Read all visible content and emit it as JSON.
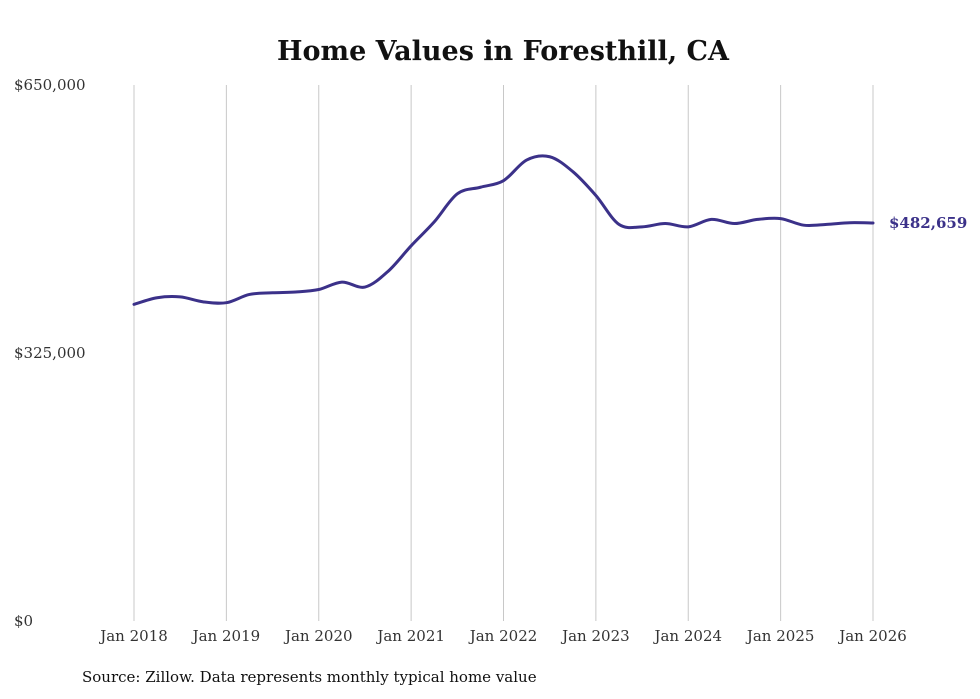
{
  "chart_data": {
    "type": "line",
    "title": "Home Values in Foresthill, CA",
    "xlabel": "",
    "ylabel": "",
    "ylim": [
      0,
      650000
    ],
    "yticks": [
      0,
      325000,
      650000
    ],
    "ytick_labels": [
      "$0",
      "$325,000",
      "$650,000"
    ],
    "xlim": [
      2018.0,
      2026.0
    ],
    "xticks": [
      2018,
      2019,
      2020,
      2021,
      2022,
      2023,
      2024,
      2025,
      2026
    ],
    "xtick_labels": [
      "Jan 2018",
      "Jan 2019",
      "Jan 2020",
      "Jan 2021",
      "Jan 2022",
      "Jan 2023",
      "Jan 2024",
      "Jan 2025",
      "Jan 2026"
    ],
    "grid": "vertical",
    "series": [
      {
        "name": "Typical home value",
        "color": "#3b3189",
        "x": [
          2018.0,
          2018.25,
          2018.5,
          2018.75,
          2019.0,
          2019.25,
          2019.5,
          2019.75,
          2020.0,
          2020.25,
          2020.5,
          2020.75,
          2021.0,
          2021.25,
          2021.5,
          2021.75,
          2022.0,
          2022.25,
          2022.5,
          2022.75,
          2023.0,
          2023.25,
          2023.5,
          2023.75,
          2024.0,
          2024.25,
          2024.5,
          2024.75,
          2025.0,
          2025.25,
          2025.5,
          2025.75,
          2026.0
        ],
        "values": [
          384000,
          392000,
          393000,
          387000,
          386000,
          396000,
          398000,
          399000,
          402000,
          411000,
          405000,
          424000,
          455000,
          484000,
          518000,
          526000,
          534000,
          559000,
          563000,
          545000,
          516000,
          481000,
          478000,
          482000,
          478000,
          487000,
          482000,
          487000,
          488000,
          480000,
          481000,
          483000,
          482659
        ]
      }
    ],
    "end_label": "$482,659"
  },
  "source_note": "Source: Zillow. Data represents monthly typical home value"
}
